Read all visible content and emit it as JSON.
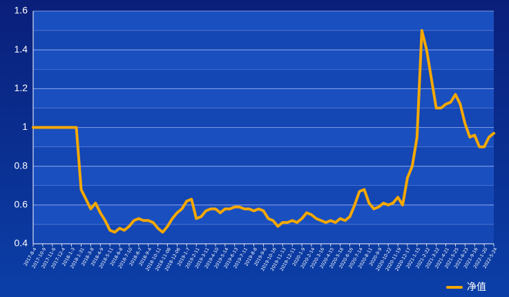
{
  "chart_data": {
    "type": "line",
    "categories": [
      "2017-8-4",
      null,
      "2017-10-9",
      null,
      "2017-11-6",
      null,
      "2017-12-4",
      null,
      "2018-1-3",
      null,
      "2018-1-31",
      null,
      "2018-3-8",
      null,
      "2018-4-9",
      null,
      "2018-5-11",
      null,
      "2018-6-8",
      null,
      "2018-7-10",
      null,
      "2018-8-7",
      null,
      "2018-9-4",
      null,
      "2018-10-11",
      null,
      "2018-11-08",
      null,
      "2018-12-06",
      null,
      "2019-1-7",
      null,
      "2019-2-11",
      null,
      "2019-3-11",
      null,
      "2019-4-10",
      null,
      "2019-5-14",
      null,
      "2019-6-13",
      null,
      "2019-7-11",
      null,
      "2019-8-8",
      null,
      "2019-9-6",
      null,
      "2019-10-16",
      null,
      "2019-11-13",
      null,
      "2019-12-11",
      null,
      "2020-1-9",
      null,
      "2020-2-14",
      null,
      "2020-3-16",
      null,
      "2020-4-15",
      null,
      "2020-5-18",
      null,
      "2020-6-16",
      null,
      "2020-7-14",
      null,
      "2020-8-11",
      null,
      "2020-9-9",
      null,
      "2020-10-22",
      null,
      "2020-11-19",
      null,
      "2020-12-17",
      null,
      "2021-1-15",
      null,
      "2021-2-22",
      null,
      "2021-3-22",
      null,
      "2021-4-21",
      null,
      "2021-5-25",
      null,
      "2021-6-23",
      null,
      "2021-9-16",
      null,
      "2022-1-20",
      null,
      "2022-5-24"
    ],
    "series": [
      {
        "name": "净值",
        "color": "#f5a800",
        "values": [
          1.0,
          1.0,
          1.0,
          1.0,
          1.0,
          1.0,
          1.0,
          1.0,
          1.0,
          1.0,
          0.68,
          0.63,
          0.58,
          0.61,
          0.56,
          0.52,
          0.47,
          0.46,
          0.48,
          0.47,
          0.49,
          0.52,
          0.53,
          0.52,
          0.52,
          0.51,
          0.48,
          0.46,
          0.49,
          0.53,
          0.56,
          0.58,
          0.62,
          0.63,
          0.53,
          0.54,
          0.57,
          0.58,
          0.58,
          0.56,
          0.58,
          0.58,
          0.59,
          0.59,
          0.58,
          0.58,
          0.57,
          0.58,
          0.57,
          0.53,
          0.52,
          0.49,
          0.51,
          0.51,
          0.52,
          0.51,
          0.53,
          0.56,
          0.55,
          0.53,
          0.52,
          0.51,
          0.52,
          0.51,
          0.53,
          0.52,
          0.54,
          0.6,
          0.67,
          0.68,
          0.61,
          0.58,
          0.59,
          0.61,
          0.6,
          0.61,
          0.64,
          0.6,
          0.74,
          0.8,
          0.95,
          1.5,
          1.4,
          1.25,
          1.1,
          1.1,
          1.12,
          1.13,
          1.17,
          1.12,
          1.02,
          0.95,
          0.96,
          0.9,
          0.9,
          0.95,
          0.97
        ]
      }
    ],
    "ylim": [
      0.4,
      1.6
    ],
    "yticks": [
      0.4,
      0.6,
      0.8,
      1,
      1.2,
      1.4,
      1.6
    ],
    "grid": true,
    "legend": "bottom-right"
  }
}
